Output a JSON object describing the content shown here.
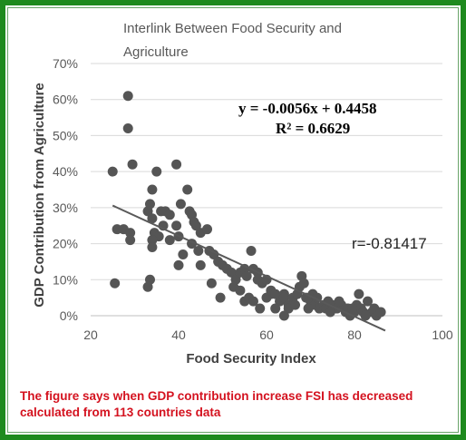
{
  "chart_data": {
    "type": "scatter",
    "title": "Interlink Between Food Security and Agriculture",
    "title_lines": [
      "Interlink Between Food Security and",
      "Agriculture"
    ],
    "xlabel": "Food Security Index",
    "ylabel": "GDP Contribution from Agriculture",
    "xlim": [
      20,
      100
    ],
    "ylim": [
      0,
      0.7
    ],
    "x_ticks": [
      20,
      40,
      60,
      80,
      100
    ],
    "y_ticks": [
      0,
      0.1,
      0.2,
      0.3,
      0.4,
      0.5,
      0.6,
      0.7
    ],
    "x_tick_labels": [
      "20",
      "40",
      "60",
      "80",
      "100"
    ],
    "y_tick_labels": [
      "0%",
      "10%",
      "20%",
      "30%",
      "40%",
      "50%",
      "60%",
      "70%"
    ],
    "grid": "horizontal",
    "marker_color": "#555555",
    "trendline_color": "#595959",
    "trendline": {
      "slope": -0.0056,
      "intercept": 0.4458,
      "x_range": [
        25,
        87
      ]
    },
    "equation_text": "y = -0.0056x + 0.4458",
    "r_squared_text": "R² = 0.6629",
    "correlation_text": "r=-0.81417",
    "points": [
      [
        28.5,
        0.61
      ],
      [
        28.5,
        0.52
      ],
      [
        25,
        0.4
      ],
      [
        29.5,
        0.42
      ],
      [
        35,
        0.4
      ],
      [
        39.5,
        0.42
      ],
      [
        26,
        0.24
      ],
      [
        27.5,
        0.24
      ],
      [
        29,
        0.23
      ],
      [
        29,
        0.21
      ],
      [
        33,
        0.29
      ],
      [
        33.5,
        0.31
      ],
      [
        34,
        0.35
      ],
      [
        34,
        0.27
      ],
      [
        36,
        0.29
      ],
      [
        36.5,
        0.25
      ],
      [
        37,
        0.29
      ],
      [
        38,
        0.28
      ],
      [
        34.5,
        0.23
      ],
      [
        35.5,
        0.22
      ],
      [
        34,
        0.21
      ],
      [
        34,
        0.19
      ],
      [
        38,
        0.21
      ],
      [
        39.5,
        0.25
      ],
      [
        40,
        0.22
      ],
      [
        40.5,
        0.31
      ],
      [
        42,
        0.35
      ],
      [
        42.5,
        0.29
      ],
      [
        43,
        0.28
      ],
      [
        43.5,
        0.26
      ],
      [
        44,
        0.25
      ],
      [
        45,
        0.23
      ],
      [
        46.5,
        0.24
      ],
      [
        43,
        0.2
      ],
      [
        44.5,
        0.18
      ],
      [
        41,
        0.17
      ],
      [
        40,
        0.14
      ],
      [
        45,
        0.14
      ],
      [
        47,
        0.18
      ],
      [
        48,
        0.17
      ],
      [
        25.5,
        0.09
      ],
      [
        33.5,
        0.1
      ],
      [
        33,
        0.08
      ],
      [
        47.5,
        0.09
      ],
      [
        49.5,
        0.05
      ],
      [
        49,
        0.15
      ],
      [
        50,
        0.14
      ],
      [
        51,
        0.13
      ],
      [
        52,
        0.12
      ],
      [
        53,
        0.1
      ],
      [
        54,
        0.12
      ],
      [
        55,
        0.13
      ],
      [
        55.5,
        0.11
      ],
      [
        56.5,
        0.18
      ],
      [
        57,
        0.13
      ],
      [
        58,
        0.12
      ],
      [
        58,
        0.1
      ],
      [
        59,
        0.09
      ],
      [
        60,
        0.1
      ],
      [
        61,
        0.06
      ],
      [
        52.5,
        0.08
      ],
      [
        54,
        0.07
      ],
      [
        55,
        0.04
      ],
      [
        56,
        0.05
      ],
      [
        57,
        0.04
      ],
      [
        58.5,
        0.02
      ],
      [
        60,
        0.05
      ],
      [
        61,
        0.07
      ],
      [
        62,
        0.06
      ],
      [
        63,
        0.04
      ],
      [
        64,
        0.06
      ],
      [
        64,
        0.05
      ],
      [
        65,
        0.03
      ],
      [
        65,
        0.02
      ],
      [
        66,
        0.05
      ],
      [
        67,
        0.06
      ],
      [
        67.5,
        0.08
      ],
      [
        68,
        0.11
      ],
      [
        68.5,
        0.09
      ],
      [
        69,
        0.05
      ],
      [
        70,
        0.04
      ],
      [
        70.5,
        0.06
      ],
      [
        71,
        0.03
      ],
      [
        72,
        0.02
      ],
      [
        73,
        0.03
      ],
      [
        73.5,
        0.02
      ],
      [
        74,
        0.04
      ],
      [
        75,
        0.03
      ],
      [
        76,
        0.02
      ],
      [
        77,
        0.03
      ],
      [
        78,
        0.01
      ],
      [
        78.5,
        0.02
      ],
      [
        79,
        0.0
      ],
      [
        80,
        0.01
      ],
      [
        80.5,
        0.03
      ],
      [
        81,
        0.06
      ],
      [
        81.5,
        0.02
      ],
      [
        82,
        0.01
      ],
      [
        83,
        0.04
      ],
      [
        84,
        0.01
      ],
      [
        85,
        0.0
      ],
      [
        85.5,
        0.01
      ],
      [
        62,
        0.02
      ],
      [
        64,
        0.0
      ],
      [
        66.5,
        0.03
      ],
      [
        69.5,
        0.02
      ],
      [
        71.5,
        0.05
      ],
      [
        74.5,
        0.01
      ],
      [
        76.5,
        0.04
      ],
      [
        79.5,
        0.02
      ],
      [
        82.5,
        0.0
      ],
      [
        84.5,
        0.02
      ],
      [
        86,
        0.01
      ]
    ]
  },
  "caption": {
    "line1": "The figure says when GDP contribution increase FSI has decreased",
    "line2": "calculated from 113 countries data"
  }
}
